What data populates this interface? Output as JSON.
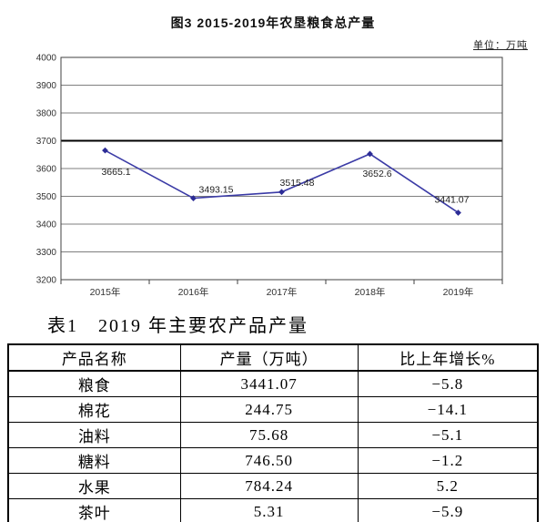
{
  "chart_data": {
    "type": "line",
    "title": "图3  2015-2019年农垦粮食总产量",
    "unit": "单位：万吨",
    "categories": [
      "2015年",
      "2016年",
      "2017年",
      "2018年",
      "2019年"
    ],
    "values": [
      3665.1,
      3493.15,
      3515.48,
      3652.6,
      3441.07
    ],
    "point_labels": [
      "3665.1",
      "3493.15",
      "3515.48",
      "3652.6",
      "3441.07"
    ],
    "ylim": [
      3200,
      4000
    ],
    "ytick_step": 100,
    "emphasized_gridline": 3700,
    "grid": true,
    "legend_position": "none",
    "line_color": "#3b3ba6",
    "marker_color": "#2c2c96",
    "gridline_color": "#7f7f7f",
    "axis_color": "#404040"
  },
  "table": {
    "title": "表1　2019 年主要农产品产量",
    "headers": [
      "产品名称",
      "产量（万吨）",
      "比上年增长%"
    ],
    "rows": [
      [
        "粮食",
        "3441.07",
        "−5.8"
      ],
      [
        "棉花",
        "244.75",
        "−14.1"
      ],
      [
        "油料",
        "75.68",
        "−5.1"
      ],
      [
        "糖料",
        "746.50",
        "−1.2"
      ],
      [
        "水果",
        "784.24",
        "5.2"
      ],
      [
        "茶叶",
        "5.31",
        "−5.9"
      ]
    ]
  }
}
